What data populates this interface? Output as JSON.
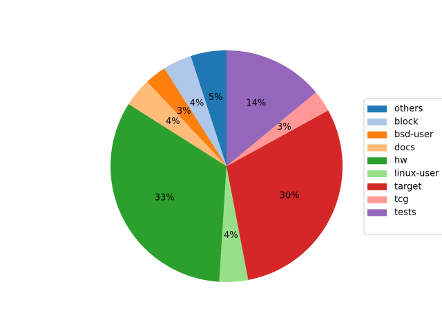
{
  "chart_data": {
    "type": "pie",
    "categories": [
      "others",
      "block",
      "bsd-user",
      "docs",
      "hw",
      "linux-user",
      "target",
      "tcg",
      "tests"
    ],
    "values": [
      5,
      4,
      3,
      4,
      33,
      4,
      30,
      3,
      14
    ],
    "value_labels": [
      "5%",
      "4%",
      "3%",
      "4%",
      "33%",
      "4%",
      "30%",
      "3%",
      "14%"
    ],
    "colors": [
      "#1f77b4",
      "#aec7e8",
      "#ff7f0e",
      "#ffbb78",
      "#2ca02c",
      "#98df8a",
      "#d62728",
      "#ff9896",
      "#9467bd"
    ],
    "legend": "right"
  }
}
